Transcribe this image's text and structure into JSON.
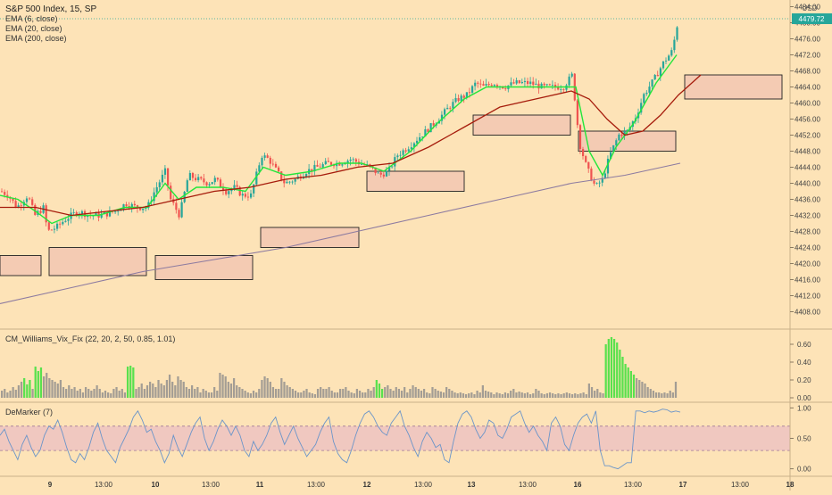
{
  "header": {
    "title": "S&P 500 Index, 15, SP",
    "indicators": [
      "EMA (6, close)",
      "EMA (20, close)",
      "EMA (200, close)"
    ],
    "currency": "USD",
    "last_price": "4479.72"
  },
  "colors": {
    "background": "#fde3b7",
    "up_candle": "#26a69a",
    "down_candle": "#ef5350",
    "ema6": "#22e63a",
    "ema20": "#a61c0c",
    "ema200": "#8d7ba0",
    "zone_fill": "#f4cbb3",
    "vix_gray": "#a39d94",
    "vix_green": "#59e14d",
    "demarker_line": "#6b95c9",
    "demarker_band": "#f0c8c0"
  },
  "panels": {
    "vix_label": "CM_Williams_Vix_Fix (22, 20, 2, 50, 0.85, 1.01)",
    "demarker_label": "DeMarker (7)"
  },
  "chart_data": [
    {
      "type": "candlestick",
      "title": "S&P 500 Index, 15, SP",
      "ylim": [
        4406,
        4485
      ],
      "y_ticks": [
        4484,
        4480,
        4476,
        4472,
        4468,
        4464,
        4460,
        4456,
        4452,
        4448,
        4444,
        4440,
        4436,
        4432,
        4428,
        4424,
        4420,
        4416,
        4412,
        4408
      ],
      "y_tick_labels": [
        "4484.00",
        "4480.00",
        "4476.00",
        "4472.00",
        "4468.00",
        "4464.00",
        "4460.00",
        "4456.00",
        "4452.00",
        "4448.00",
        "4444.00",
        "4440.00",
        "4436.00",
        "4432.00",
        "4428.00",
        "4424.00",
        "4420.00",
        "4416.00",
        "4412.00",
        "4408.00"
      ],
      "x_tick_labels": [
        "9",
        "13:00",
        "10",
        "13:00",
        "11",
        "13:00",
        "12",
        "13:00",
        "13",
        "13:00",
        "16",
        "13:00",
        "17",
        "13:00",
        "18"
      ],
      "close_path": [
        [
          0,
          4438
        ],
        [
          8,
          4437
        ],
        [
          18,
          4434
        ],
        [
          30,
          4437
        ],
        [
          38,
          4432
        ],
        [
          48,
          4434
        ],
        [
          52,
          4428
        ],
        [
          62,
          4429
        ],
        [
          72,
          4431
        ],
        [
          86,
          4433
        ],
        [
          100,
          4432
        ],
        [
          112,
          4432
        ],
        [
          128,
          4433
        ],
        [
          140,
          4435
        ],
        [
          152,
          4434
        ],
        [
          164,
          4434
        ],
        [
          172,
          4438
        ],
        [
          184,
          4443
        ],
        [
          190,
          4436
        ],
        [
          200,
          4432
        ],
        [
          210,
          4442
        ],
        [
          220,
          4441
        ],
        [
          232,
          4440
        ],
        [
          240,
          4441
        ],
        [
          252,
          4438
        ],
        [
          262,
          4439
        ],
        [
          270,
          4437
        ],
        [
          280,
          4437
        ],
        [
          292,
          4447
        ],
        [
          300,
          4446
        ],
        [
          306,
          4444
        ],
        [
          318,
          4440
        ],
        [
          330,
          4441
        ],
        [
          342,
          4443
        ],
        [
          354,
          4444
        ],
        [
          366,
          4445
        ],
        [
          378,
          4445
        ],
        [
          392,
          4446
        ],
        [
          402,
          4445
        ],
        [
          414,
          4444
        ],
        [
          424,
          4442
        ],
        [
          434,
          4443
        ],
        [
          444,
          4447
        ],
        [
          456,
          4449
        ],
        [
          466,
          4451
        ],
        [
          476,
          4453
        ],
        [
          490,
          4456
        ],
        [
          502,
          4459
        ],
        [
          512,
          4461
        ],
        [
          522,
          4462
        ],
        [
          532,
          4465
        ],
        [
          540,
          4464
        ],
        [
          552,
          4465
        ],
        [
          564,
          4464
        ],
        [
          576,
          4465
        ],
        [
          592,
          4465
        ],
        [
          606,
          4464
        ],
        [
          618,
          4464
        ],
        [
          630,
          4464
        ],
        [
          640,
          4467
        ],
        [
          648,
          4450
        ],
        [
          656,
          4444
        ],
        [
          666,
          4439
        ],
        [
          674,
          4441
        ],
        [
          682,
          4447
        ],
        [
          692,
          4452
        ],
        [
          702,
          4453
        ],
        [
          712,
          4457
        ],
        [
          720,
          4462
        ],
        [
          732,
          4466
        ],
        [
          742,
          4470
        ],
        [
          752,
          4473
        ],
        [
          758,
          4480
        ]
      ],
      "series": [
        {
          "name": "EMA (6, close)",
          "values": [
            [
              0,
              4437
            ],
            [
              20,
              4436
            ],
            [
              40,
              4433
            ],
            [
              58,
              4430
            ],
            [
              80,
              4432
            ],
            [
              110,
              4432
            ],
            [
              140,
              4434
            ],
            [
              165,
              4434
            ],
            [
              185,
              4440
            ],
            [
              200,
              4436
            ],
            [
              220,
              4439
            ],
            [
              250,
              4439
            ],
            [
              275,
              4438
            ],
            [
              295,
              4444
            ],
            [
              320,
              4442
            ],
            [
              350,
              4443
            ],
            [
              380,
              4445
            ],
            [
              405,
              4445
            ],
            [
              430,
              4443
            ],
            [
              460,
              4448
            ],
            [
              490,
              4455
            ],
            [
              520,
              4461
            ],
            [
              545,
              4464
            ],
            [
              580,
              4464
            ],
            [
              620,
              4464
            ],
            [
              645,
              4464
            ],
            [
              660,
              4448
            ],
            [
              675,
              4442
            ],
            [
              690,
              4449
            ],
            [
              710,
              4455
            ],
            [
              735,
              4465
            ],
            [
              758,
              4472
            ]
          ]
        },
        {
          "name": "EMA (20, close)",
          "values": [
            [
              0,
              4434
            ],
            [
              40,
              4434
            ],
            [
              80,
              4432
            ],
            [
              120,
              4433
            ],
            [
              160,
              4434
            ],
            [
              200,
              4436
            ],
            [
              240,
              4438
            ],
            [
              280,
              4439
            ],
            [
              320,
              4441
            ],
            [
              360,
              4442
            ],
            [
              400,
              4444
            ],
            [
              440,
              4445
            ],
            [
              480,
              4449
            ],
            [
              520,
              4454
            ],
            [
              560,
              4459
            ],
            [
              600,
              4461
            ],
            [
              640,
              4463
            ],
            [
              660,
              4461
            ],
            [
              680,
              4456
            ],
            [
              700,
              4452
            ],
            [
              720,
              4453
            ],
            [
              740,
              4457
            ],
            [
              760,
              4462
            ],
            [
              785,
              4467
            ]
          ]
        },
        {
          "name": "EMA (200, close)",
          "values": [
            [
              0,
              4410
            ],
            [
              80,
              4414
            ],
            [
              160,
              4418
            ],
            [
              240,
              4421
            ],
            [
              320,
              4424
            ],
            [
              400,
              4428
            ],
            [
              480,
              4432
            ],
            [
              560,
              4436
            ],
            [
              640,
              4440
            ],
            [
              700,
              4442
            ],
            [
              762,
              4445
            ]
          ]
        }
      ],
      "zones": [
        {
          "y_top": 4422,
          "y_bottom": 4417
        },
        {
          "y_top": 4424,
          "y_bottom": 4417
        },
        {
          "y_top": 4422,
          "y_bottom": 4416
        },
        {
          "y_top": 4429,
          "y_bottom": 4424
        },
        {
          "y_top": 4443,
          "y_bottom": 4438
        },
        {
          "y_top": 4457,
          "y_bottom": 4452
        },
        {
          "y_top": 4453,
          "y_bottom": 4448
        },
        {
          "y_top": 4467,
          "y_bottom": 4461
        }
      ]
    },
    {
      "type": "bar",
      "title": "CM_Williams_Vix_Fix (22, 20, 2, 50, 0.85, 1.01)",
      "ylim": [
        0,
        0.72
      ],
      "y_ticks": [
        0,
        0.2,
        0.4,
        0.6
      ],
      "y_tick_labels": [
        "0.00",
        "0.20",
        "0.40",
        "0.60"
      ],
      "values": [
        0.08,
        0.1,
        0.06,
        0.08,
        0.12,
        0.09,
        0.14,
        0.18,
        0.22,
        0.15,
        0.2,
        0.1,
        0.35,
        0.3,
        0.34,
        0.24,
        0.28,
        0.22,
        0.2,
        0.18,
        0.16,
        0.2,
        0.12,
        0.1,
        0.14,
        0.1,
        0.12,
        0.08,
        0.1,
        0.06,
        0.12,
        0.1,
        0.08,
        0.1,
        0.14,
        0.1,
        0.06,
        0.08,
        0.06,
        0.05,
        0.1,
        0.12,
        0.08,
        0.1,
        0.06,
        0.35,
        0.36,
        0.34,
        0.1,
        0.12,
        0.16,
        0.1,
        0.14,
        0.18,
        0.16,
        0.12,
        0.2,
        0.16,
        0.14,
        0.2,
        0.26,
        0.18,
        0.14,
        0.24,
        0.2,
        0.18,
        0.12,
        0.1,
        0.14,
        0.1,
        0.12,
        0.06,
        0.1,
        0.08,
        0.06,
        0.06,
        0.12,
        0.08,
        0.28,
        0.26,
        0.24,
        0.18,
        0.16,
        0.22,
        0.14,
        0.12,
        0.1,
        0.08,
        0.06,
        0.05,
        0.08,
        0.06,
        0.1,
        0.2,
        0.24,
        0.22,
        0.18,
        0.12,
        0.1,
        0.1,
        0.22,
        0.18,
        0.14,
        0.12,
        0.1,
        0.08,
        0.06,
        0.06,
        0.08,
        0.1,
        0.06,
        0.05,
        0.04,
        0.1,
        0.12,
        0.1,
        0.1,
        0.12,
        0.08,
        0.06,
        0.06,
        0.1,
        0.1,
        0.12,
        0.08,
        0.06,
        0.05,
        0.1,
        0.08,
        0.06,
        0.06,
        0.1,
        0.08,
        0.12,
        0.2,
        0.16,
        0.1,
        0.12,
        0.14,
        0.1,
        0.08,
        0.12,
        0.1,
        0.08,
        0.12,
        0.06,
        0.1,
        0.14,
        0.12,
        0.1,
        0.08,
        0.1,
        0.06,
        0.05,
        0.12,
        0.1,
        0.08,
        0.07,
        0.06,
        0.12,
        0.1,
        0.08,
        0.06,
        0.05,
        0.06,
        0.05,
        0.04,
        0.05,
        0.06,
        0.04,
        0.08,
        0.06,
        0.14,
        0.08,
        0.07,
        0.06,
        0.04,
        0.06,
        0.05,
        0.04,
        0.06,
        0.05,
        0.08,
        0.1,
        0.06,
        0.07,
        0.06,
        0.05,
        0.06,
        0.04,
        0.05,
        0.1,
        0.08,
        0.05,
        0.04,
        0.05,
        0.06,
        0.05,
        0.04,
        0.05,
        0.04,
        0.05,
        0.06,
        0.05,
        0.04,
        0.05,
        0.04,
        0.05,
        0.06,
        0.04,
        0.16,
        0.12,
        0.08,
        0.1,
        0.06,
        0.05,
        0.6,
        0.66,
        0.68,
        0.66,
        0.62,
        0.54,
        0.46,
        0.38,
        0.34,
        0.3,
        0.26,
        0.22,
        0.2,
        0.18,
        0.16,
        0.12,
        0.1,
        0.08,
        0.06,
        0.06,
        0.05,
        0.06,
        0.05,
        0.08,
        0.06,
        0.18
      ],
      "highlight_indices": [
        8,
        9,
        10,
        12,
        13,
        14,
        45,
        46,
        47,
        134,
        135,
        136,
        216,
        217,
        218,
        219,
        220,
        221,
        222,
        223,
        224,
        225,
        226
      ]
    },
    {
      "type": "line",
      "title": "DeMarker (7)",
      "ylim": [
        -0.05,
        1.02
      ],
      "y_ticks": [
        0,
        0.5,
        1.0
      ],
      "y_tick_labels": [
        "0.00",
        "0.50",
        "1.00"
      ],
      "band": [
        0.3,
        0.7
      ],
      "values": [
        0.55,
        0.65,
        0.45,
        0.3,
        0.15,
        0.4,
        0.55,
        0.35,
        0.2,
        0.3,
        0.55,
        0.7,
        0.65,
        0.8,
        0.6,
        0.35,
        0.15,
        0.1,
        0.25,
        0.15,
        0.35,
        0.6,
        0.75,
        0.5,
        0.3,
        0.2,
        0.1,
        0.35,
        0.5,
        0.65,
        0.85,
        0.95,
        0.8,
        0.6,
        0.65,
        0.45,
        0.3,
        0.1,
        0.25,
        0.55,
        0.35,
        0.2,
        0.4,
        0.6,
        0.75,
        0.85,
        0.5,
        0.3,
        0.45,
        0.65,
        0.8,
        0.7,
        0.55,
        0.7,
        0.55,
        0.3,
        0.2,
        0.45,
        0.3,
        0.4,
        0.55,
        0.75,
        0.85,
        0.6,
        0.4,
        0.55,
        0.7,
        0.5,
        0.35,
        0.2,
        0.3,
        0.4,
        0.6,
        0.75,
        0.85,
        0.45,
        0.25,
        0.15,
        0.1,
        0.3,
        0.55,
        0.75,
        0.9,
        0.95,
        0.85,
        0.7,
        0.6,
        0.55,
        0.75,
        0.85,
        0.95,
        0.7,
        0.55,
        0.35,
        0.2,
        0.45,
        0.6,
        0.5,
        0.35,
        0.4,
        0.15,
        0.1,
        0.45,
        0.75,
        0.9,
        0.95,
        0.85,
        0.65,
        0.5,
        0.6,
        0.8,
        0.75,
        0.55,
        0.5,
        0.65,
        0.85,
        0.9,
        0.95,
        0.75,
        0.6,
        0.7,
        0.55,
        0.45,
        0.3,
        0.75,
        0.85,
        0.7,
        0.4,
        0.3,
        0.55,
        0.75,
        0.85,
        0.9,
        0.75,
        0.95,
        0.3,
        0.05,
        0.05,
        0.02,
        0.0,
        0.05,
        0.1,
        0.1,
        0.95,
        0.95,
        0.92,
        0.95,
        0.93,
        0.95,
        0.98,
        0.97,
        0.93,
        0.95,
        0.93
      ]
    }
  ]
}
